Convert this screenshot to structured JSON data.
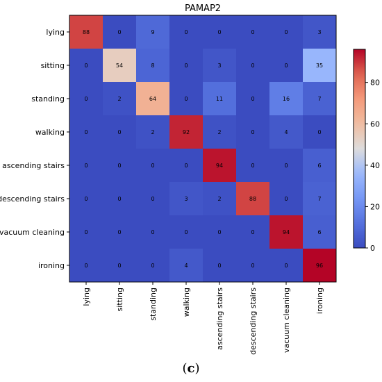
{
  "chart_data": {
    "type": "heatmap",
    "title": "PAMAP2",
    "xlabel": "",
    "ylabel": "",
    "row_labels": [
      "lying",
      "sitting",
      "standing",
      "walking",
      "ascending stairs",
      "descending stairs",
      "vacuum cleaning",
      "ironing"
    ],
    "col_labels": [
      "lying",
      "sitting",
      "standing",
      "walking",
      "ascending stairs",
      "descending stairs",
      "vacuum cleaning",
      "ironing"
    ],
    "values": [
      [
        88,
        0,
        9,
        0,
        0,
        0,
        0,
        3
      ],
      [
        0,
        54,
        8,
        0,
        3,
        0,
        0,
        35
      ],
      [
        0,
        2,
        64,
        0,
        11,
        0,
        16,
        7
      ],
      [
        0,
        0,
        2,
        92,
        2,
        0,
        4,
        0
      ],
      [
        0,
        0,
        0,
        0,
        94,
        0,
        0,
        6
      ],
      [
        0,
        0,
        0,
        3,
        2,
        88,
        0,
        7
      ],
      [
        0,
        0,
        0,
        0,
        0,
        0,
        94,
        6
      ],
      [
        0,
        0,
        0,
        4,
        0,
        0,
        0,
        96
      ]
    ],
    "colormap": "coolwarm",
    "vmin": 0,
    "vmax": 96,
    "colorbar_ticks": [
      0,
      20,
      40,
      60,
      80
    ]
  },
  "caption": {
    "open": "(",
    "letter": "c",
    "close": ")"
  }
}
